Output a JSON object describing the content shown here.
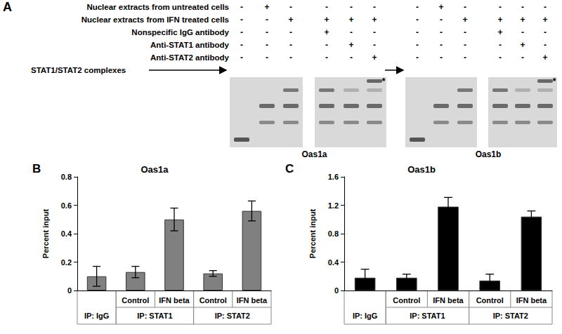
{
  "panel_a": {
    "label": "A",
    "rows": [
      {
        "label": "Nuclear extracts from untreated cells",
        "oas1a": [
          "-",
          "+",
          "-",
          "-",
          "-",
          "-"
        ],
        "oas1b": [
          "-",
          "+",
          "-",
          "-",
          "-",
          "-"
        ]
      },
      {
        "label": "Nuclear extracts from IFN treated cells",
        "oas1a": [
          "-",
          "-",
          "+",
          "+",
          "+",
          "+"
        ],
        "oas1b": [
          "-",
          "-",
          "+",
          "+",
          "+",
          "+"
        ]
      },
      {
        "label": "Nonspecific IgG antibody",
        "oas1a": [
          "-",
          "-",
          "-",
          "+",
          "-",
          "-"
        ],
        "oas1b": [
          "-",
          "-",
          "-",
          "+",
          "-",
          "-"
        ]
      },
      {
        "label": "Anti-STAT1 antibody",
        "oas1a": [
          "-",
          "-",
          "-",
          "-",
          "+",
          "-"
        ],
        "oas1b": [
          "-",
          "-",
          "-",
          "-",
          "+",
          "-"
        ]
      },
      {
        "label": "Anti-STAT2 antibody",
        "oas1a": [
          "-",
          "-",
          "-",
          "-",
          "-",
          "+"
        ],
        "oas1b": [
          "-",
          "-",
          "-",
          "-",
          "-",
          "+"
        ]
      }
    ],
    "complex_label": "STAT1/STAT2 complexes",
    "gels": [
      {
        "caption": "Oas1a",
        "star": "*"
      },
      {
        "caption": "Oas1b",
        "star": "*"
      }
    ]
  },
  "chart_data": [
    {
      "type": "bar",
      "panel": "B",
      "title": "Oas1a",
      "y_label": "Percent input",
      "categories": [
        null,
        "Control",
        "IFN beta",
        "Control",
        "IFN beta"
      ],
      "category_groups": [
        "IP: IgG",
        "IP: STAT1",
        "IP: STAT1",
        "IP: STAT2",
        "IP: STAT2"
      ],
      "values": [
        0.1,
        0.13,
        0.5,
        0.12,
        0.56
      ],
      "errors": [
        0.07,
        0.04,
        0.08,
        0.02,
        0.07
      ],
      "color": "#808080",
      "ylim": [
        0,
        0.8
      ],
      "yticks": [
        0,
        0.2,
        0.4,
        0.6,
        0.8
      ],
      "grid": false
    },
    {
      "type": "bar",
      "panel": "C",
      "title": "Oas1b",
      "y_label": "Percent input",
      "categories": [
        null,
        "Control",
        "IFN beta",
        "Control",
        "IFN beta"
      ],
      "category_groups": [
        "IP: IgG",
        "IP: STAT1",
        "IP: STAT1",
        "IP: STAT2",
        "IP: STAT2"
      ],
      "values": [
        0.18,
        0.18,
        1.18,
        0.14,
        1.04
      ],
      "errors": [
        0.12,
        0.05,
        0.13,
        0.09,
        0.08
      ],
      "color": "#000000",
      "ylim": [
        0,
        1.6
      ],
      "yticks": [
        0,
        0.4,
        0.8,
        1.2,
        1.6
      ],
      "grid": false
    }
  ]
}
